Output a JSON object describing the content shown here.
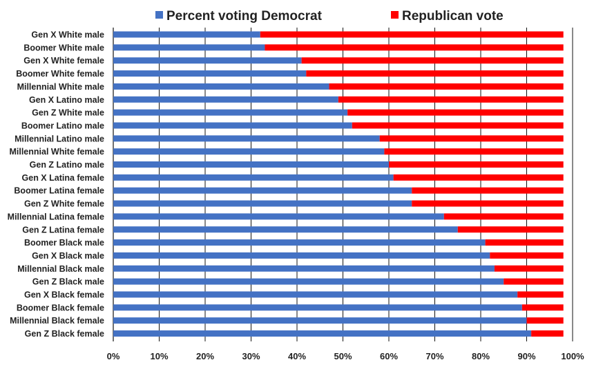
{
  "chart_data": {
    "type": "bar",
    "orientation": "horizontal",
    "stacked": true,
    "title": "",
    "xlabel": "",
    "ylabel": "",
    "xlim": [
      0,
      100
    ],
    "grid": true,
    "legend_position": "top",
    "categories": [
      "Gen X White male",
      "Boomer White male",
      "Gen X White female",
      "Boomer White female",
      "Millennial White male",
      "Gen X Latino male",
      "Gen Z White male",
      "Boomer Latino male",
      "Millennial Latino male",
      "Millennial White female",
      "Gen Z Latino male",
      "Gen X Latina female",
      "Boomer Latina female",
      "Gen Z White female",
      "Millennial Latina female",
      "Gen Z Latina female",
      "Boomer Black male",
      "Gen X Black male",
      "Millennial Black male",
      "Gen Z Black male",
      "Gen X Black female",
      "Boomer Black female",
      "Millennial Black female",
      "Gen Z Black female"
    ],
    "series": [
      {
        "name": "Percent voting Democrat",
        "color": "#4472C4",
        "values": [
          32,
          33,
          41,
          42,
          47,
          49,
          51,
          52,
          58,
          59,
          60,
          61,
          65,
          65,
          72,
          75,
          81,
          82,
          83,
          85,
          88,
          89,
          90,
          91
        ]
      },
      {
        "name": "Republican vote",
        "color": "#FF0000",
        "values": [
          66,
          65,
          57,
          56,
          51,
          49,
          47,
          46,
          40,
          39,
          38,
          37,
          33,
          33,
          26,
          23,
          17,
          16,
          15,
          13,
          10,
          9,
          8,
          7
        ]
      }
    ],
    "x_ticks": [
      "0%",
      "10%",
      "20%",
      "30%",
      "40%",
      "50%",
      "60%",
      "70%",
      "80%",
      "90%",
      "100%"
    ]
  }
}
